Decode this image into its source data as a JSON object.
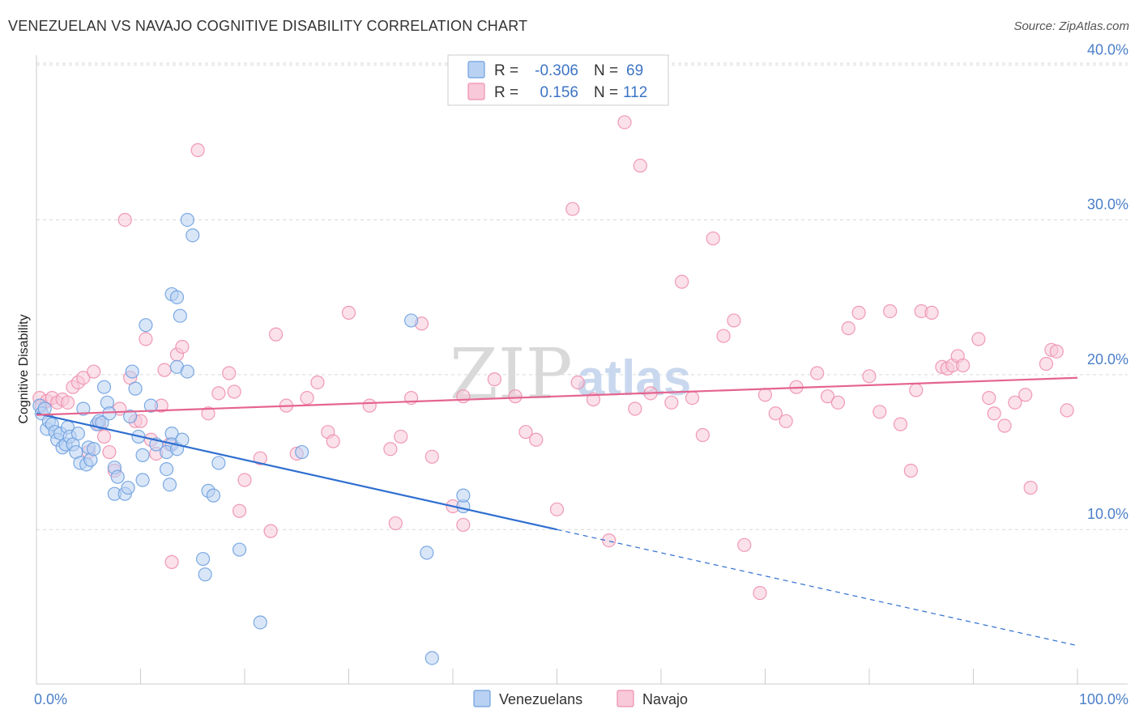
{
  "header": {
    "title": "VENEZUELAN VS NAVAJO COGNITIVE DISABILITY CORRELATION CHART",
    "source": "Source: ZipAtlas.com"
  },
  "watermark": {
    "zip": "ZIP",
    "atlas": "atlas"
  },
  "colors": {
    "venezuelans": "#6ea1e0",
    "venezuelans_fill": "#b9d1f2",
    "navajo": "#ee8fae",
    "navajo_fill": "#f8c9d8",
    "blue_line": "#2f6fd0",
    "pink_line": "#e5648f",
    "grid": "#d8d8d8",
    "tick_label": "#4a7fc9"
  },
  "stats": {
    "r_label": "R =",
    "n_label": "N =",
    "venezuelans": {
      "r": "-0.306",
      "n": "69"
    },
    "navajo": {
      "r": "0.156",
      "n": "112"
    }
  },
  "chart_data": {
    "type": "scatter",
    "title": "VENEZUELAN VS NAVAJO COGNITIVE DISABILITY CORRELATION CHART",
    "xlabel": "",
    "ylabel": "Cognitive Disability",
    "xlim": [
      0,
      100
    ],
    "ylim": [
      0,
      42
    ],
    "x_tick_labels": {
      "min": "0.0%",
      "max": "100.0%"
    },
    "y_ticks": [
      {
        "value": 10,
        "label": "10.0%"
      },
      {
        "value": 20,
        "label": "20.0%"
      },
      {
        "value": 30,
        "label": "30.0%"
      },
      {
        "value": 40,
        "label": "40.0%"
      }
    ],
    "grid": "horizontal dashed",
    "legend_placement": "bottom-center",
    "series": [
      {
        "name": "Venezuelans",
        "trend": {
          "x_start": 0,
          "y_start": 17.5,
          "x_solid_end": 50,
          "y_solid_end": 10.0,
          "x_end": 100,
          "y_end": 2.5
        },
        "points": [
          [
            0.3,
            18.0
          ],
          [
            0.5,
            17.5
          ],
          [
            0.8,
            17.8
          ],
          [
            1.0,
            16.5
          ],
          [
            1.2,
            17.0
          ],
          [
            1.5,
            16.8
          ],
          [
            1.8,
            16.3
          ],
          [
            2.0,
            15.8
          ],
          [
            2.3,
            16.2
          ],
          [
            2.5,
            15.3
          ],
          [
            2.8,
            15.5
          ],
          [
            3.0,
            16.6
          ],
          [
            3.2,
            16.0
          ],
          [
            3.5,
            15.5
          ],
          [
            3.8,
            15.0
          ],
          [
            4.0,
            16.2
          ],
          [
            4.2,
            14.3
          ],
          [
            4.5,
            17.8
          ],
          [
            4.8,
            14.2
          ],
          [
            5.0,
            15.3
          ],
          [
            5.2,
            14.5
          ],
          [
            5.5,
            15.2
          ],
          [
            5.8,
            16.8
          ],
          [
            6.0,
            17.0
          ],
          [
            6.3,
            16.9
          ],
          [
            6.5,
            19.2
          ],
          [
            6.8,
            18.2
          ],
          [
            7.0,
            17.5
          ],
          [
            7.5,
            14.0
          ],
          [
            7.8,
            13.4
          ],
          [
            7.5,
            12.3
          ],
          [
            8.5,
            12.3
          ],
          [
            8.8,
            12.7
          ],
          [
            9.0,
            17.3
          ],
          [
            9.2,
            20.2
          ],
          [
            9.5,
            19.1
          ],
          [
            9.8,
            16.0
          ],
          [
            10.2,
            14.8
          ],
          [
            10.2,
            13.2
          ],
          [
            10.5,
            23.2
          ],
          [
            11.0,
            18.0
          ],
          [
            11.5,
            15.5
          ],
          [
            12.5,
            13.9
          ],
          [
            12.8,
            12.9
          ],
          [
            13.0,
            16.2
          ],
          [
            13.0,
            25.2
          ],
          [
            13.5,
            25.0
          ],
          [
            13.8,
            23.8
          ],
          [
            14.5,
            30.0
          ],
          [
            13.5,
            20.5
          ],
          [
            14.5,
            20.2
          ],
          [
            13.0,
            15.5
          ],
          [
            12.5,
            15.0
          ],
          [
            13.5,
            15.2
          ],
          [
            14.0,
            15.8
          ],
          [
            15.0,
            29.0
          ],
          [
            16.0,
            8.1
          ],
          [
            16.5,
            12.5
          ],
          [
            17.0,
            12.2
          ],
          [
            16.2,
            7.1
          ],
          [
            17.5,
            14.3
          ],
          [
            19.5,
            8.7
          ],
          [
            21.5,
            4.0
          ],
          [
            25.5,
            15.0
          ],
          [
            36.0,
            23.5
          ],
          [
            37.5,
            8.5
          ],
          [
            38.0,
            1.7
          ],
          [
            41.0,
            11.5
          ],
          [
            41.0,
            12.2
          ]
        ]
      },
      {
        "name": "Navajo",
        "trend": {
          "x_start": 0,
          "y_start": 17.4,
          "x_end": 100,
          "y_end": 19.8
        },
        "points": [
          [
            0.3,
            18.5
          ],
          [
            0.5,
            18.0
          ],
          [
            1.0,
            18.3
          ],
          [
            1.5,
            18.5
          ],
          [
            2.0,
            18.2
          ],
          [
            2.5,
            18.4
          ],
          [
            3.0,
            18.2
          ],
          [
            3.5,
            19.2
          ],
          [
            4.0,
            19.5
          ],
          [
            4.5,
            19.8
          ],
          [
            5.0,
            15.0
          ],
          [
            5.5,
            20.2
          ],
          [
            6.0,
            16.8
          ],
          [
            6.5,
            16.0
          ],
          [
            7.0,
            15.0
          ],
          [
            7.5,
            13.8
          ],
          [
            8.0,
            17.8
          ],
          [
            8.5,
            30.0
          ],
          [
            9.0,
            19.8
          ],
          [
            9.5,
            17.0
          ],
          [
            10.0,
            17.0
          ],
          [
            10.5,
            22.3
          ],
          [
            11.0,
            15.8
          ],
          [
            11.5,
            14.9
          ],
          [
            12.0,
            18.0
          ],
          [
            12.3,
            20.3
          ],
          [
            12.8,
            15.5
          ],
          [
            13.0,
            7.9
          ],
          [
            13.5,
            21.3
          ],
          [
            14.0,
            21.8
          ],
          [
            15.5,
            34.5
          ],
          [
            16.5,
            17.5
          ],
          [
            17.5,
            18.8
          ],
          [
            18.5,
            20.1
          ],
          [
            19.0,
            18.9
          ],
          [
            19.5,
            11.2
          ],
          [
            20.0,
            13.2
          ],
          [
            21.5,
            14.6
          ],
          [
            22.5,
            9.9
          ],
          [
            23.0,
            22.6
          ],
          [
            24.0,
            18.0
          ],
          [
            25.0,
            14.9
          ],
          [
            26.0,
            18.5
          ],
          [
            27.0,
            19.5
          ],
          [
            28.0,
            16.3
          ],
          [
            28.5,
            15.7
          ],
          [
            30.0,
            24.0
          ],
          [
            32.0,
            18.0
          ],
          [
            34.0,
            15.2
          ],
          [
            34.5,
            10.4
          ],
          [
            35.0,
            16.0
          ],
          [
            36.0,
            18.5
          ],
          [
            37.0,
            23.3
          ],
          [
            38.0,
            14.7
          ],
          [
            40.0,
            11.5
          ],
          [
            41.0,
            18.6
          ],
          [
            41.0,
            10.3
          ],
          [
            44.0,
            19.7
          ],
          [
            46.0,
            18.6
          ],
          [
            47.0,
            16.3
          ],
          [
            48.0,
            15.8
          ],
          [
            50.0,
            11.3
          ],
          [
            51.5,
            30.7
          ],
          [
            52.0,
            19.5
          ],
          [
            53.5,
            18.4
          ],
          [
            55.0,
            9.3
          ],
          [
            56.5,
            36.3
          ],
          [
            57.5,
            17.8
          ],
          [
            58.0,
            33.5
          ],
          [
            59.0,
            18.8
          ],
          [
            61.0,
            18.2
          ],
          [
            62.0,
            26.0
          ],
          [
            63.0,
            18.5
          ],
          [
            64.0,
            16.1
          ],
          [
            65.0,
            28.8
          ],
          [
            66.0,
            22.5
          ],
          [
            67.0,
            23.5
          ],
          [
            68.0,
            9.0
          ],
          [
            69.5,
            5.9
          ],
          [
            70.0,
            18.7
          ],
          [
            71.0,
            17.5
          ],
          [
            72.0,
            17.0
          ],
          [
            73.0,
            19.2
          ],
          [
            75.0,
            20.1
          ],
          [
            76.0,
            18.6
          ],
          [
            77.0,
            18.2
          ],
          [
            78.0,
            23.0
          ],
          [
            79.0,
            24.0
          ],
          [
            80.0,
            19.9
          ],
          [
            81.0,
            17.6
          ],
          [
            82.0,
            24.1
          ],
          [
            83.0,
            16.8
          ],
          [
            84.0,
            13.8
          ],
          [
            84.5,
            19.0
          ],
          [
            85.0,
            24.1
          ],
          [
            86.0,
            24.0
          ],
          [
            87.0,
            20.5
          ],
          [
            87.5,
            20.4
          ],
          [
            88.0,
            20.6
          ],
          [
            88.5,
            21.2
          ],
          [
            89.0,
            20.6
          ],
          [
            90.5,
            22.3
          ],
          [
            91.5,
            18.5
          ],
          [
            92.0,
            17.5
          ],
          [
            93.0,
            16.7
          ],
          [
            94.0,
            18.2
          ],
          [
            95.0,
            18.7
          ],
          [
            95.5,
            12.7
          ],
          [
            97.0,
            20.7
          ],
          [
            97.5,
            21.6
          ],
          [
            98.0,
            21.5
          ],
          [
            99.0,
            17.7
          ]
        ]
      }
    ]
  },
  "legend": {
    "venezuelans": "Venezuelans",
    "navajo": "Navajo"
  }
}
